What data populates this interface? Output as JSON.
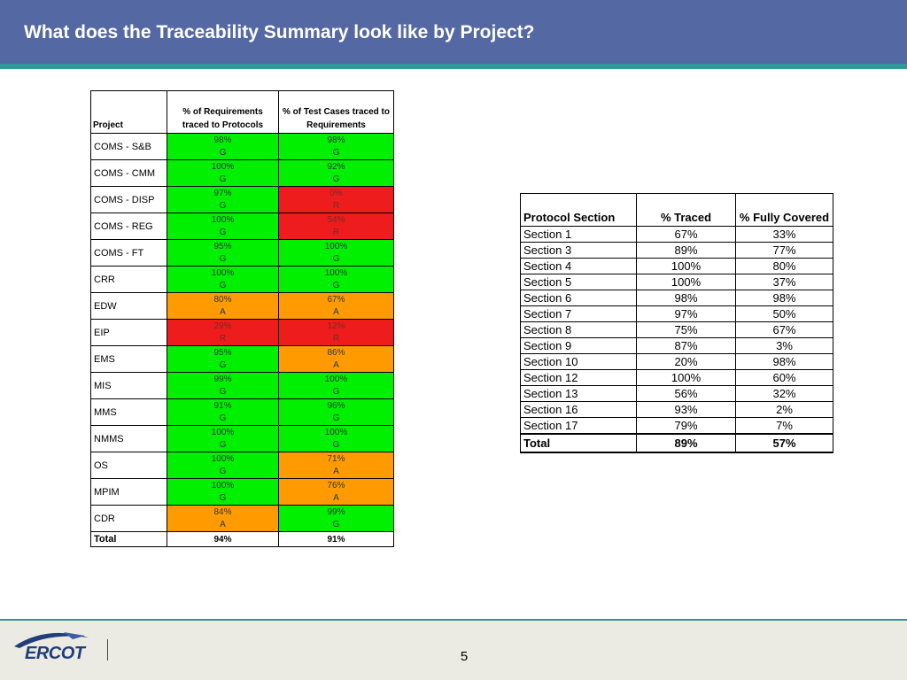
{
  "slide": {
    "title": "What does the Traceability Summary look like by Project?",
    "page_number": "5",
    "logo_text": "ERCOT"
  },
  "colors": {
    "header": "#5469a4",
    "accent_stripe": "#2f9a96",
    "green": "#00f000",
    "amber": "#ff9b00",
    "red": "#ee1c1c",
    "footer_bg": "#ebeae3"
  },
  "project_table": {
    "headers": {
      "project": "Project",
      "req": "% of Requirements traced to Protocols",
      "test": "% of Test Cases traced to Requirements"
    },
    "rows": [
      {
        "name": "COMS - S&B",
        "req": {
          "pct": "98%",
          "status": "G"
        },
        "test": {
          "pct": "98%",
          "status": "G"
        }
      },
      {
        "name": "COMS - CMM",
        "req": {
          "pct": "100%",
          "status": "G"
        },
        "test": {
          "pct": "92%",
          "status": "G"
        }
      },
      {
        "name": "COMS - DISP",
        "req": {
          "pct": "97%",
          "status": "G"
        },
        "test": {
          "pct": "0%",
          "status": "R"
        }
      },
      {
        "name": "COMS - REG",
        "req": {
          "pct": "100%",
          "status": "G"
        },
        "test": {
          "pct": "54%",
          "status": "R"
        }
      },
      {
        "name": "COMS - FT",
        "req": {
          "pct": "95%",
          "status": "G"
        },
        "test": {
          "pct": "100%",
          "status": "G"
        }
      },
      {
        "name": "CRR",
        "req": {
          "pct": "100%",
          "status": "G"
        },
        "test": {
          "pct": "100%",
          "status": "G"
        }
      },
      {
        "name": "EDW",
        "req": {
          "pct": "80%",
          "status": "A"
        },
        "test": {
          "pct": "67%",
          "status": "A"
        }
      },
      {
        "name": "EIP",
        "req": {
          "pct": "29%",
          "status": "R"
        },
        "test": {
          "pct": "12%",
          "status": "R"
        }
      },
      {
        "name": "EMS",
        "req": {
          "pct": "95%",
          "status": "G"
        },
        "test": {
          "pct": "86%",
          "status": "A"
        }
      },
      {
        "name": "MIS",
        "req": {
          "pct": "99%",
          "status": "G"
        },
        "test": {
          "pct": "100%",
          "status": "G"
        }
      },
      {
        "name": "MMS",
        "req": {
          "pct": "91%",
          "status": "G"
        },
        "test": {
          "pct": "96%",
          "status": "G"
        }
      },
      {
        "name": "NMMS",
        "req": {
          "pct": "100%",
          "status": "G"
        },
        "test": {
          "pct": "100%",
          "status": "G"
        }
      },
      {
        "name": "OS",
        "req": {
          "pct": "100%",
          "status": "G"
        },
        "test": {
          "pct": "71%",
          "status": "A"
        }
      },
      {
        "name": "MPIM",
        "req": {
          "pct": "100%",
          "status": "G"
        },
        "test": {
          "pct": "76%",
          "status": "A"
        }
      },
      {
        "name": "CDR",
        "req": {
          "pct": "84%",
          "status": "A"
        },
        "test": {
          "pct": "99%",
          "status": "G"
        }
      }
    ],
    "total": {
      "label": "Total",
      "req": "94%",
      "test": "91%"
    }
  },
  "protocol_table": {
    "headers": {
      "section": "Protocol Section",
      "traced": "% Traced",
      "covered": "% Fully Covered"
    },
    "rows": [
      {
        "section": "Section 1",
        "traced": "67%",
        "covered": "33%"
      },
      {
        "section": "Section 3",
        "traced": "89%",
        "covered": "77%"
      },
      {
        "section": "Section 4",
        "traced": "100%",
        "covered": "80%"
      },
      {
        "section": "Section 5",
        "traced": "100%",
        "covered": "37%"
      },
      {
        "section": "Section 6",
        "traced": "98%",
        "covered": "98%"
      },
      {
        "section": "Section 7",
        "traced": "97%",
        "covered": "50%"
      },
      {
        "section": "Section 8",
        "traced": "75%",
        "covered": "67%"
      },
      {
        "section": "Section 9",
        "traced": "87%",
        "covered": "3%"
      },
      {
        "section": "Section 10",
        "traced": "20%",
        "covered": "98%"
      },
      {
        "section": "Section 12",
        "traced": "100%",
        "covered": "60%"
      },
      {
        "section": "Section 13",
        "traced": "56%",
        "covered": "32%"
      },
      {
        "section": "Section 16",
        "traced": "93%",
        "covered": "2%"
      },
      {
        "section": "Section 17",
        "traced": "79%",
        "covered": "7%"
      }
    ],
    "total": {
      "label": "Total",
      "traced": "89%",
      "covered": "57%"
    }
  }
}
